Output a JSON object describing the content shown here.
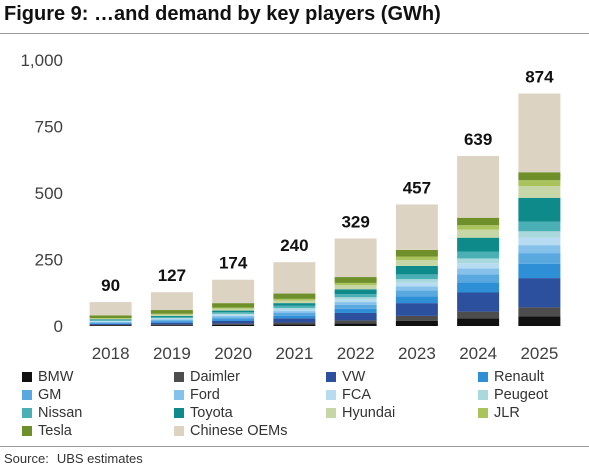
{
  "figure": {
    "title": "Figure 9: …and demand by key players (GWh)",
    "source_label": "Source:",
    "source_text": "UBS estimates"
  },
  "chart_data": {
    "type": "bar",
    "stacked": true,
    "title": "Figure 9: …and demand by key players (GWh)",
    "xlabel": "",
    "ylabel": "",
    "ylim": [
      0,
      1000
    ],
    "yticks": [
      0,
      250,
      500,
      750,
      1000
    ],
    "ytick_labels": [
      "0",
      "250",
      "500",
      "750",
      "1,000"
    ],
    "grid": false,
    "legend_position": "bottom",
    "categories": [
      "2018",
      "2019",
      "2020",
      "2021",
      "2022",
      "2023",
      "2024",
      "2025"
    ],
    "totals": [
      90,
      127,
      174,
      240,
      329,
      457,
      639,
      874
    ],
    "series": [
      {
        "name": "BMW",
        "color": "#111111",
        "values": [
          2,
          3,
          4,
          6,
          10,
          20,
          28,
          36
        ]
      },
      {
        "name": "Daimler",
        "color": "#4d4d4d",
        "values": [
          2,
          3,
          5,
          7,
          11,
          18,
          26,
          34
        ]
      },
      {
        "name": "VW",
        "color": "#2c4f9e",
        "values": [
          4,
          6,
          10,
          16,
          28,
          48,
          72,
          110
        ]
      },
      {
        "name": "Renault",
        "color": "#2f8fd6",
        "values": [
          3,
          5,
          7,
          10,
          16,
          26,
          38,
          54
        ]
      },
      {
        "name": "GM",
        "color": "#5aa8e0",
        "values": [
          3,
          5,
          7,
          10,
          15,
          22,
          30,
          40
        ]
      },
      {
        "name": "Ford",
        "color": "#86c1ec",
        "values": [
          2,
          3,
          5,
          7,
          10,
          15,
          22,
          30
        ]
      },
      {
        "name": "FCA",
        "color": "#b7dcf2",
        "values": [
          2,
          3,
          4,
          6,
          9,
          14,
          20,
          28
        ]
      },
      {
        "name": "Peugeot",
        "color": "#a9d9dc",
        "values": [
          1,
          2,
          4,
          6,
          9,
          13,
          18,
          24
        ]
      },
      {
        "name": "Nissan",
        "color": "#4ab0b5",
        "values": [
          3,
          4,
          6,
          8,
          12,
          18,
          26,
          36
        ]
      },
      {
        "name": "Toyota",
        "color": "#0e8a8a",
        "values": [
          3,
          4,
          6,
          10,
          18,
          32,
          52,
          90
        ]
      },
      {
        "name": "Hyundai",
        "color": "#c7d6a6",
        "values": [
          3,
          5,
          7,
          10,
          15,
          22,
          30,
          44
        ]
      },
      {
        "name": "JLR",
        "color": "#a9c45c",
        "values": [
          2,
          3,
          4,
          6,
          9,
          13,
          17,
          22
        ]
      },
      {
        "name": "Tesla",
        "color": "#6e8f2a",
        "values": [
          10,
          14,
          17,
          20,
          22,
          25,
          28,
          30
        ]
      },
      {
        "name": "Chinese OEMs",
        "color": "#ddd3c2",
        "values": [
          50,
          67,
          88,
          118,
          145,
          171,
          232,
          296
        ]
      }
    ]
  }
}
